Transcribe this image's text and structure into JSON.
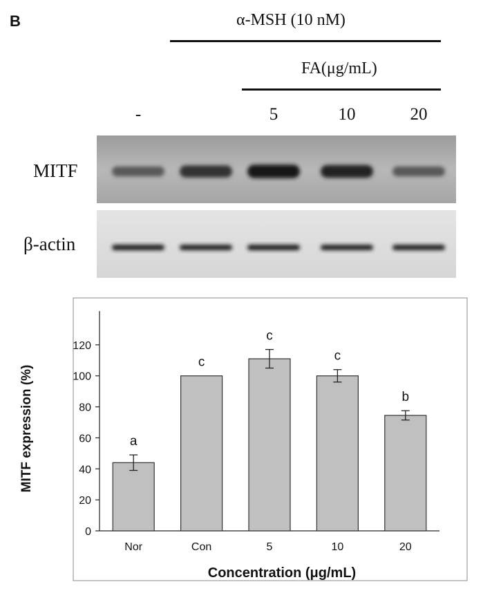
{
  "panel_label": "B",
  "treatment": {
    "agent": "α-MSH (10 nM)",
    "fa": "FA(μg/mL)"
  },
  "lanes": [
    "-",
    "",
    "5",
    "10",
    "20"
  ],
  "blot_rows": [
    {
      "label": "MITF",
      "band_intensity": [
        0.45,
        0.75,
        0.95,
        0.85,
        0.45
      ]
    },
    {
      "label": "β-actin",
      "band_intensity": [
        0.9,
        0.85,
        0.9,
        0.85,
        0.85
      ]
    }
  ],
  "colors": {
    "bar_fill": "#c0c0c0",
    "bar_stroke": "#333333",
    "blot_background": "#e0e0e0"
  },
  "chart_data": {
    "type": "bar",
    "categories": [
      "Nor",
      "Con",
      "5",
      "10",
      "20"
    ],
    "values": [
      44,
      100,
      111,
      100,
      74.5
    ],
    "error": [
      5,
      0,
      6,
      4,
      3
    ],
    "significance": [
      "a",
      "c",
      "c",
      "c",
      "b"
    ],
    "xlabel": "Concentration (μg/mL)",
    "ylabel": "MITF expression (%)",
    "ylim": [
      0,
      140
    ],
    "yticks": [
      0,
      20,
      40,
      60,
      80,
      100,
      120
    ],
    "grid": false,
    "legend": "none"
  }
}
